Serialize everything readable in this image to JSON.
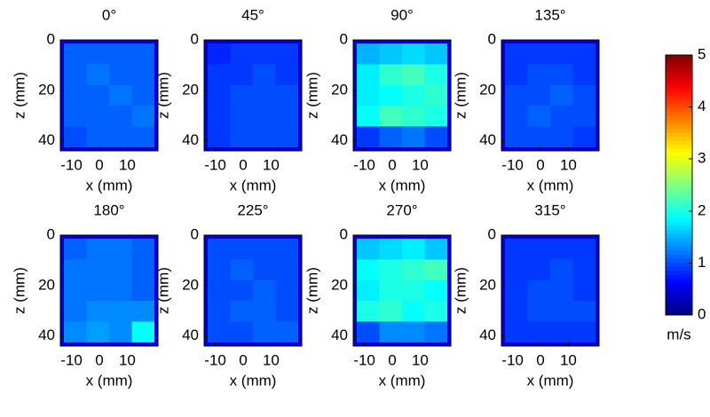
{
  "chart_data": {
    "type": "heatmap",
    "xlabel": "x (mm)",
    "ylabel": "z (mm)",
    "xlim": [
      -14,
      21
    ],
    "xticks": [
      -10,
      0,
      10
    ],
    "ylim": [
      0,
      44
    ],
    "yreverse": true,
    "yticks": [
      0,
      20,
      40
    ],
    "colormap": "jet",
    "panels": [
      {
        "title": "0°",
        "values": [
          [
            1.1,
            1.1,
            1.1,
            1.1
          ],
          [
            1.1,
            1.2,
            1.1,
            1.1
          ],
          [
            1.1,
            1.1,
            1.2,
            1.1
          ],
          [
            1.1,
            1.1,
            1.1,
            1.2
          ],
          [
            1.0,
            1.1,
            1.1,
            1.1
          ]
        ]
      },
      {
        "title": "45°",
        "values": [
          [
            0.8,
            0.9,
            0.9,
            0.9
          ],
          [
            0.9,
            0.9,
            1.0,
            0.9
          ],
          [
            0.9,
            1.0,
            1.0,
            1.0
          ],
          [
            0.9,
            1.0,
            1.0,
            1.0
          ],
          [
            0.9,
            1.0,
            1.0,
            1.0
          ]
        ]
      },
      {
        "title": "90°",
        "values": [
          [
            1.5,
            1.6,
            1.7,
            1.6
          ],
          [
            1.8,
            2.1,
            2.2,
            2.0
          ],
          [
            1.8,
            1.9,
            2.0,
            2.1
          ],
          [
            1.9,
            2.2,
            2.1,
            2.0
          ],
          [
            0.9,
            1.1,
            1.2,
            1.0
          ]
        ]
      },
      {
        "title": "135°",
        "values": [
          [
            0.9,
            0.9,
            0.9,
            0.9
          ],
          [
            0.9,
            1.0,
            1.0,
            0.9
          ],
          [
            1.0,
            1.0,
            1.1,
            1.0
          ],
          [
            1.0,
            1.1,
            1.0,
            1.0
          ],
          [
            1.0,
            1.0,
            1.0,
            0.9
          ]
        ]
      },
      {
        "title": "180°",
        "values": [
          [
            1.1,
            1.2,
            1.2,
            1.1
          ],
          [
            1.2,
            1.2,
            1.2,
            1.1
          ],
          [
            1.2,
            1.2,
            1.2,
            1.1
          ],
          [
            1.2,
            1.3,
            1.3,
            1.3
          ],
          [
            1.3,
            1.4,
            1.3,
            1.9
          ]
        ]
      },
      {
        "title": "225°",
        "values": [
          [
            1.0,
            1.0,
            1.0,
            1.0
          ],
          [
            1.0,
            1.1,
            1.0,
            1.0
          ],
          [
            1.0,
            1.0,
            1.1,
            1.0
          ],
          [
            1.0,
            1.1,
            1.1,
            1.0
          ],
          [
            1.0,
            1.0,
            1.1,
            1.1
          ]
        ]
      },
      {
        "title": "270°",
        "values": [
          [
            1.6,
            1.7,
            1.8,
            1.6
          ],
          [
            1.9,
            2.0,
            2.1,
            2.2
          ],
          [
            1.8,
            2.0,
            2.0,
            1.9
          ],
          [
            2.0,
            2.1,
            1.9,
            2.0
          ],
          [
            1.0,
            1.3,
            1.3,
            1.2
          ]
        ]
      },
      {
        "title": "315°",
        "values": [
          [
            0.9,
            0.9,
            0.9,
            0.9
          ],
          [
            0.9,
            0.9,
            1.0,
            0.9
          ],
          [
            0.9,
            1.0,
            1.0,
            0.9
          ],
          [
            0.9,
            1.0,
            1.0,
            1.0
          ],
          [
            0.9,
            0.9,
            0.9,
            0.9
          ]
        ]
      }
    ],
    "colorbar": {
      "clim": [
        0,
        5
      ],
      "ticks": [
        0,
        1,
        2,
        3,
        4,
        5
      ],
      "label": "m/s"
    }
  }
}
